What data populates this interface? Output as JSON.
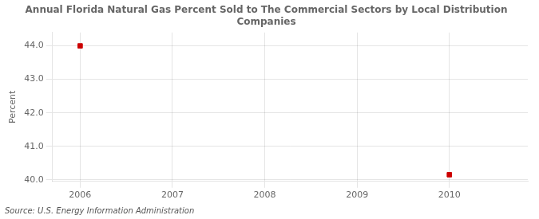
{
  "chart_data": {
    "type": "scatter",
    "title": "Annual Florida Natural Gas Percent Sold to The Commercial Sectors by Local Distribution\nCompanies",
    "ylabel": "Percent",
    "source": "Source: U.S. Energy Information Administration",
    "x": [
      2006,
      2010
    ],
    "values": [
      44.0,
      40.15
    ],
    "color": "#cc0000",
    "marker": "square",
    "xlim": [
      2005.7,
      2010.85
    ],
    "xticks": [
      2006,
      2007,
      2008,
      2009,
      2010
    ],
    "ylim": [
      39.95,
      44.4
    ],
    "yticks": [
      {
        "value": 40.0,
        "label": "40.0"
      },
      {
        "value": 41.0,
        "label": "41.0"
      },
      {
        "value": 42.0,
        "label": "42.0"
      },
      {
        "value": 43.0,
        "label": "43.0"
      },
      {
        "value": 44.0,
        "label": "44.0"
      }
    ],
    "grid": true
  }
}
